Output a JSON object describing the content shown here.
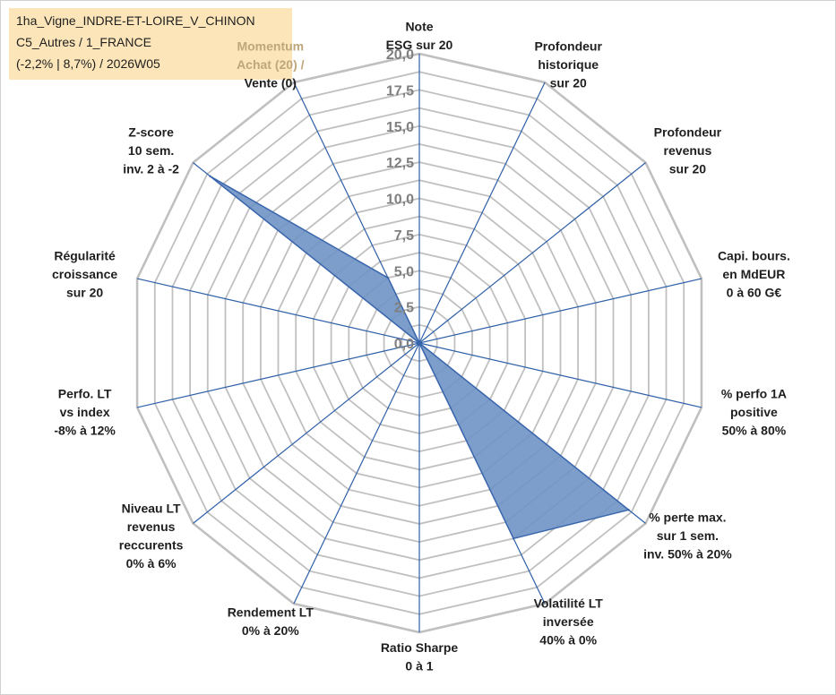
{
  "info": {
    "line1": "1ha_Vigne_INDRE-ET-LOIRE_V_CHINON",
    "line2": "C5_Autres / 1_FRANCE",
    "line3": "(-2,2% | 8,7%) / 2026W05"
  },
  "chart_data": {
    "type": "radar",
    "rmax": 20,
    "grid_step": 1.25,
    "ticks": [
      "0,0",
      "2,5",
      "5,0",
      "7,5",
      "10,0",
      "12,5",
      "15,0",
      "17,5",
      "20,0"
    ],
    "tick_values": [
      0,
      2.5,
      5,
      7.5,
      10,
      12.5,
      15,
      17.5,
      20
    ],
    "axes": [
      {
        "lines": [
          "Note",
          "ESG sur 20"
        ]
      },
      {
        "lines": [
          "Profondeur",
          "historique",
          "sur 20"
        ]
      },
      {
        "lines": [
          "Profondeur",
          "revenus",
          "sur 20"
        ]
      },
      {
        "lines": [
          "Capi. bours.",
          "en MdEUR",
          "0 à 60 G€"
        ]
      },
      {
        "lines": [
          "% perfo 1A",
          "positive",
          "50% à 80%"
        ]
      },
      {
        "lines": [
          "% perte max.",
          "sur 1 sem.",
          "inv. 50% à 20%"
        ]
      },
      {
        "lines": [
          "Volatilité LT",
          "inversée",
          "40% à 0%"
        ]
      },
      {
        "lines": [
          "Ratio Sharpe",
          "0 à 1"
        ]
      },
      {
        "lines": [
          "Rendement LT",
          "0% à 20%"
        ]
      },
      {
        "lines": [
          "Niveau LT",
          "revenus",
          "reccurents",
          "0% à 6%"
        ]
      },
      {
        "lines": [
          "Perfo. LT",
          "vs index",
          "-8% à 12%"
        ]
      },
      {
        "lines": [
          "Régularité",
          "croissance",
          "sur 20"
        ]
      },
      {
        "lines": [
          "Z-score",
          "10 sem.",
          "inv. 2 à -2"
        ]
      },
      {
        "lines": [
          "Momentum",
          "Achat (20) /",
          "Vente (0)"
        ]
      }
    ],
    "series": [
      {
        "values": [
          0,
          0,
          0,
          0,
          0,
          18.5,
          15,
          0,
          0,
          0,
          0,
          0,
          18.5,
          5
        ]
      }
    ],
    "colors": {
      "grid": "#c0c0c0",
      "spoke": "#2e5fa8",
      "fill": "#6f93c4",
      "stroke": "#3a66ad",
      "momentum_label": "#bfa77a"
    }
  }
}
